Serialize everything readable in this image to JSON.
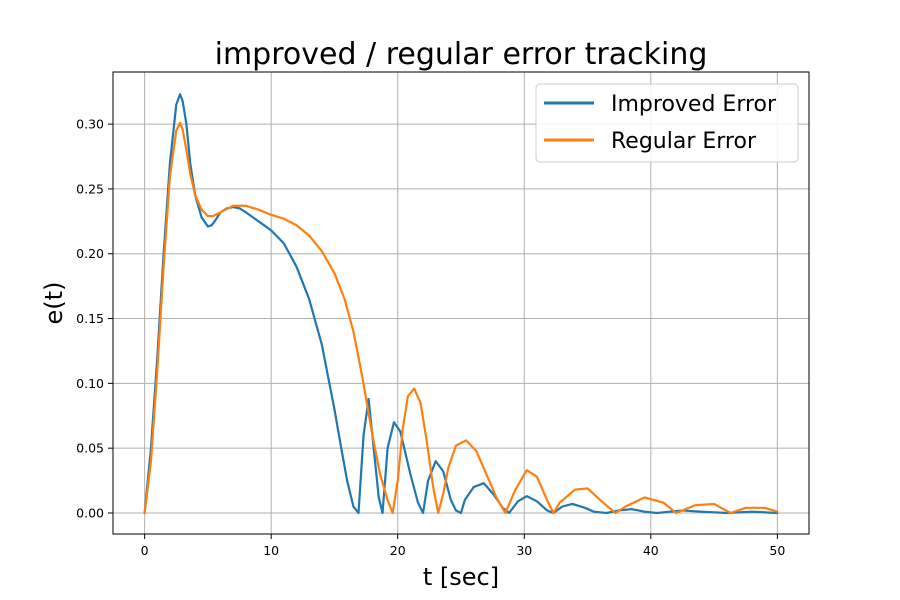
{
  "chart_data": {
    "type": "line",
    "title": "improved / regular error tracking",
    "xlabel": "t [sec]",
    "ylabel": "e(t)",
    "xlim": [
      -2.5,
      52.5
    ],
    "ylim": [
      -0.0162,
      0.3402
    ],
    "xticks": [
      0,
      10,
      20,
      30,
      40,
      50
    ],
    "yticks": [
      0.0,
      0.05,
      0.1,
      0.15,
      0.2,
      0.25,
      0.3
    ],
    "xtick_labels": [
      "0",
      "10",
      "20",
      "30",
      "40",
      "50"
    ],
    "ytick_labels": [
      "0.00",
      "0.05",
      "0.10",
      "0.15",
      "0.20",
      "0.25",
      "0.30"
    ],
    "grid": true,
    "legend_position": "top-right",
    "series": [
      {
        "name": "Improved Error",
        "color": "#1f77b4",
        "x": [
          0,
          0.5,
          1.0,
          1.5,
          2.0,
          2.5,
          2.8,
          3.0,
          3.3,
          3.6,
          4.0,
          4.5,
          5.0,
          5.3,
          5.6,
          6.0,
          6.5,
          7.0,
          7.5,
          8.0,
          9.0,
          10.0,
          11.0,
          12.0,
          13.0,
          14.0,
          15.0,
          15.5,
          16.0,
          16.5,
          16.9,
          17.3,
          17.7,
          18.1,
          18.5,
          18.8,
          19.2,
          19.7,
          20.2,
          21.0,
          21.6,
          22.0,
          22.4,
          23.0,
          23.6,
          24.2,
          24.6,
          25.0,
          25.3,
          26.0,
          26.8,
          27.6,
          28.3,
          28.8,
          29.5,
          30.2,
          31.0,
          31.8,
          32.3,
          33.0,
          33.8,
          34.8,
          35.5,
          36.5,
          37.5,
          38.5,
          39.5,
          40.5,
          41.5,
          42.5,
          44.0,
          46.0,
          48.0,
          50.0
        ],
        "y": [
          0.0,
          0.05,
          0.12,
          0.2,
          0.27,
          0.315,
          0.323,
          0.318,
          0.3,
          0.27,
          0.245,
          0.228,
          0.221,
          0.222,
          0.226,
          0.232,
          0.235,
          0.236,
          0.235,
          0.232,
          0.225,
          0.218,
          0.208,
          0.19,
          0.165,
          0.13,
          0.08,
          0.052,
          0.025,
          0.005,
          0.0,
          0.06,
          0.088,
          0.05,
          0.012,
          0.0,
          0.05,
          0.07,
          0.063,
          0.03,
          0.008,
          0.0,
          0.025,
          0.04,
          0.032,
          0.01,
          0.002,
          0.0,
          0.01,
          0.02,
          0.023,
          0.014,
          0.004,
          0.0,
          0.009,
          0.013,
          0.009,
          0.002,
          0.0,
          0.005,
          0.007,
          0.004,
          0.001,
          0.0,
          0.002,
          0.003,
          0.001,
          0.0,
          0.001,
          0.002,
          0.001,
          0.0,
          0.001,
          0.0
        ]
      },
      {
        "name": "Regular Error",
        "color": "#ff7f0e",
        "x": [
          0,
          0.5,
          1.0,
          1.5,
          2.0,
          2.5,
          2.8,
          3.0,
          3.3,
          3.6,
          4.0,
          4.5,
          5.0,
          5.4,
          6.0,
          7.0,
          8.0,
          9.0,
          10.0,
          11.0,
          12.0,
          13.0,
          14.0,
          15.0,
          15.8,
          16.5,
          17.2,
          18.0,
          18.6,
          19.2,
          19.6,
          20.0,
          20.4,
          20.8,
          21.3,
          21.8,
          22.3,
          22.8,
          23.2,
          23.6,
          24.0,
          24.6,
          25.4,
          26.2,
          27.0,
          27.8,
          28.5,
          29.3,
          30.2,
          31.0,
          31.8,
          32.3,
          32.8,
          34.0,
          35.0,
          36.0,
          37.2,
          38.0,
          39.5,
          41.0,
          42.0,
          43.5,
          45.0,
          46.3,
          47.5,
          49.0,
          50.0
        ],
        "y": [
          0.0,
          0.04,
          0.11,
          0.19,
          0.26,
          0.295,
          0.301,
          0.296,
          0.28,
          0.262,
          0.245,
          0.234,
          0.229,
          0.229,
          0.232,
          0.237,
          0.237,
          0.234,
          0.23,
          0.227,
          0.222,
          0.214,
          0.202,
          0.185,
          0.165,
          0.14,
          0.105,
          0.06,
          0.03,
          0.01,
          0.0,
          0.025,
          0.065,
          0.09,
          0.096,
          0.085,
          0.055,
          0.02,
          0.0,
          0.015,
          0.035,
          0.052,
          0.056,
          0.048,
          0.03,
          0.012,
          0.0,
          0.018,
          0.033,
          0.028,
          0.01,
          0.0,
          0.008,
          0.018,
          0.019,
          0.01,
          0.0,
          0.005,
          0.012,
          0.008,
          0.0,
          0.006,
          0.007,
          0.0,
          0.004,
          0.004,
          0.001
        ]
      }
    ]
  }
}
